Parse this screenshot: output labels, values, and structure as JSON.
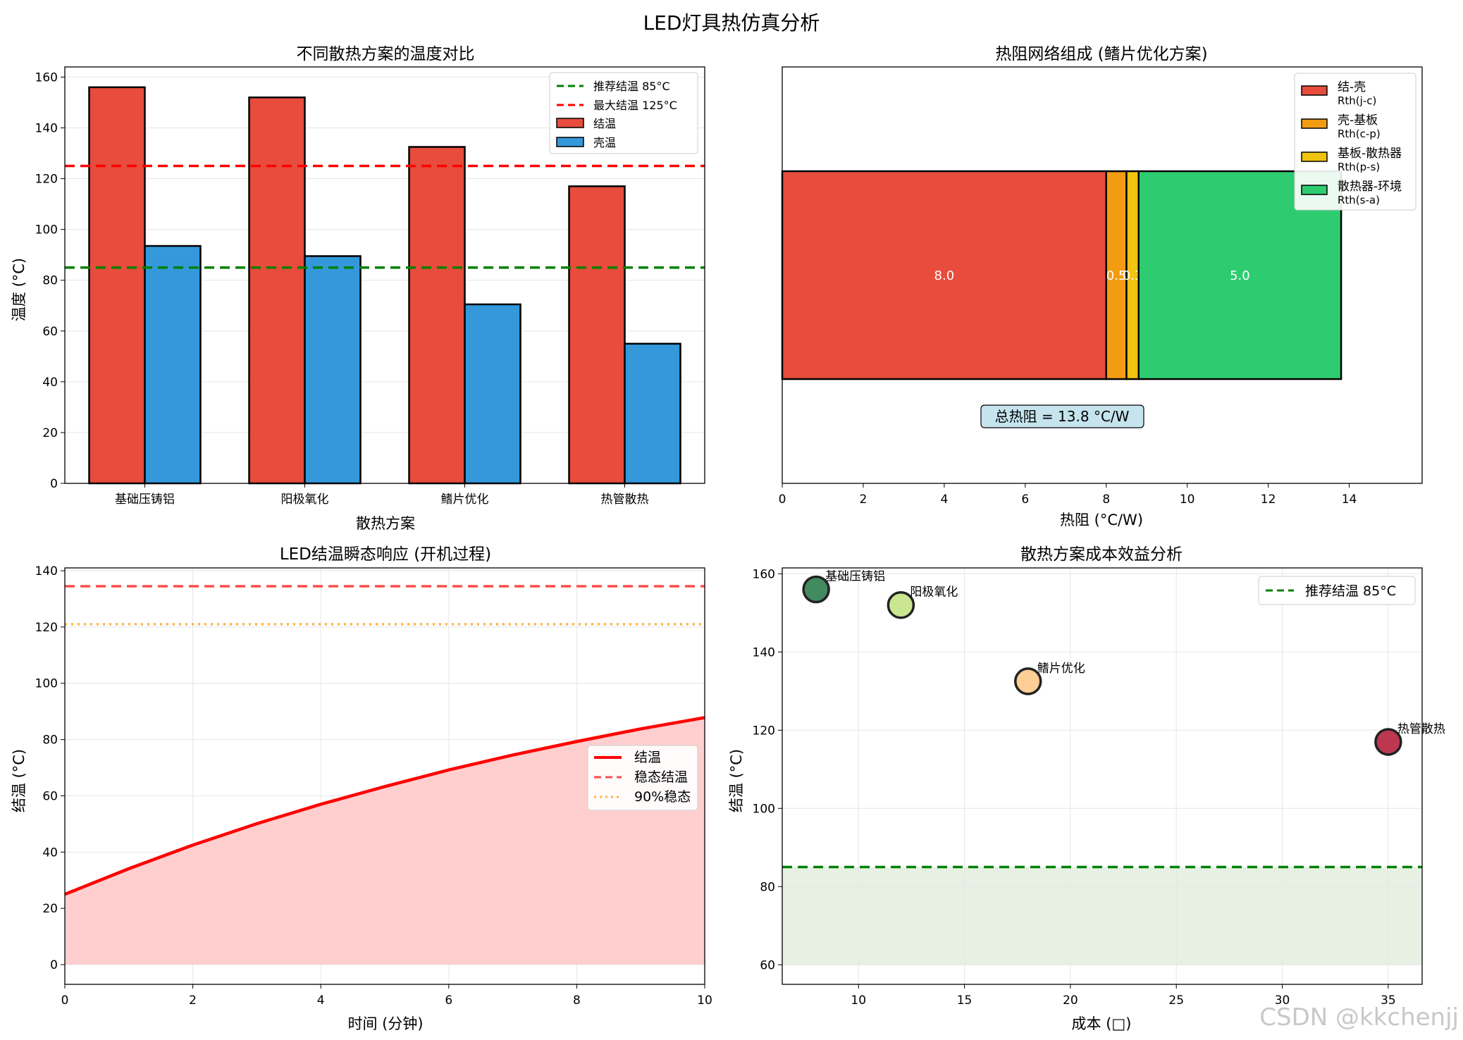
{
  "figure": {
    "suptitle": "LED灯具热仿真分析",
    "watermark": "CSDN @kkchenjj"
  },
  "chart_data": [
    {
      "id": "temps",
      "type": "bar",
      "title": "不同散热方案的温度对比",
      "xlabel": "散热方案",
      "ylabel": "温度 (°C)",
      "categories": [
        "基础压铸铝",
        "阳极氧化",
        "鳍片优化",
        "热管散热"
      ],
      "series": [
        {
          "name": "结温",
          "color": "#e74c3c",
          "values": [
            156,
            152,
            132.5,
            117
          ]
        },
        {
          "name": "壳温",
          "color": "#3498db",
          "values": [
            93.5,
            89.5,
            70.5,
            55
          ]
        }
      ],
      "reference_lines": [
        {
          "name": "推荐结温 85°C",
          "value": 85,
          "color": "#008000",
          "style": "dashed"
        },
        {
          "name": "最大结温 125°C",
          "value": 125,
          "color": "#ff0000",
          "style": "dashed"
        }
      ],
      "ylim": [
        0,
        164
      ],
      "yticks": [
        0,
        20,
        40,
        60,
        80,
        100,
        120,
        140,
        160
      ],
      "grid": "y",
      "legend": "top-right"
    },
    {
      "id": "network",
      "type": "bar",
      "orientation": "horizontal-stacked",
      "title": "热阻网络组成 (鳍片优化方案)",
      "xlabel": "热阻 (°C/W)",
      "segments": [
        {
          "name": "结-壳",
          "sub": "Rth(j-c)",
          "value": 8.0,
          "label": "8.0",
          "color": "#e74c3c"
        },
        {
          "name": "壳-基板",
          "sub": "Rth(c-p)",
          "value": 0.5,
          "label": "0.5",
          "color": "#f39c12"
        },
        {
          "name": "基板-散热器",
          "sub": "Rth(p-s)",
          "value": 0.3,
          "label": "0.3",
          "color": "#f1c40f"
        },
        {
          "name": "散热器-环境",
          "sub": "Rth(s-a)",
          "value": 5.0,
          "label": "5.0",
          "color": "#2ecc71"
        }
      ],
      "annotation": "总热阻 = 13.8 °C/W",
      "xlim": [
        0,
        15.8
      ],
      "xticks": [
        0,
        2,
        4,
        6,
        8,
        10,
        12,
        14
      ],
      "legend": "top-right"
    },
    {
      "id": "transient",
      "type": "area",
      "title": "LED结温瞬态响应 (开机过程)",
      "xlabel": "时间 (分钟)",
      "ylabel": "结温 (°C)",
      "series": [
        {
          "name": "结温",
          "color": "#ff0000",
          "style": "solid",
          "x": [
            0,
            1,
            2,
            3,
            4,
            5,
            6,
            7,
            8,
            9,
            10
          ],
          "y": [
            25,
            34.1,
            42.5,
            50.1,
            57,
            63.3,
            69.2,
            74.5,
            79.3,
            83.8,
            87.8
          ]
        },
        {
          "name": "稳态结温",
          "color": "#ff4d4d",
          "style": "dashed",
          "y": 134.5
        },
        {
          "name": "90%稳态",
          "color": "#ffb347",
          "style": "dotted",
          "y": 121
        }
      ],
      "fill_color": "#ffcccc",
      "xlim": [
        0,
        10
      ],
      "ylim": [
        -7,
        141
      ],
      "xticks": [
        0,
        2,
        4,
        6,
        8,
        10
      ],
      "yticks": [
        0,
        20,
        40,
        60,
        80,
        100,
        120,
        140
      ],
      "grid": "both",
      "legend": "right"
    },
    {
      "id": "cost",
      "type": "scatter",
      "title": "散热方案成本效益分析",
      "xlabel": "成本 (□)",
      "ylabel": "结温 (°C)",
      "points": [
        {
          "label": "基础压铸铝",
          "x": 8,
          "y": 156,
          "color": "#2e7d4f"
        },
        {
          "label": "阳极氧化",
          "x": 12,
          "y": 152,
          "color": "#c5e384"
        },
        {
          "label": "鳍片优化",
          "x": 18,
          "y": 132.5,
          "color": "#fdc98a"
        },
        {
          "label": "热管散热",
          "x": 35,
          "y": 117,
          "color": "#b5213c"
        }
      ],
      "reference_line": {
        "name": "推荐结温 85°C",
        "value": 85,
        "color": "#008000",
        "style": "dashed"
      },
      "shaded_band": {
        "from": 60,
        "to": 85,
        "color": "#e6f1e4"
      },
      "xlim": [
        6.4,
        36.6
      ],
      "ylim": [
        55,
        161.5
      ],
      "xticks": [
        10,
        15,
        20,
        25,
        30,
        35
      ],
      "yticks": [
        60,
        80,
        100,
        120,
        140,
        160
      ],
      "grid": "both",
      "legend": "top-right"
    }
  ]
}
